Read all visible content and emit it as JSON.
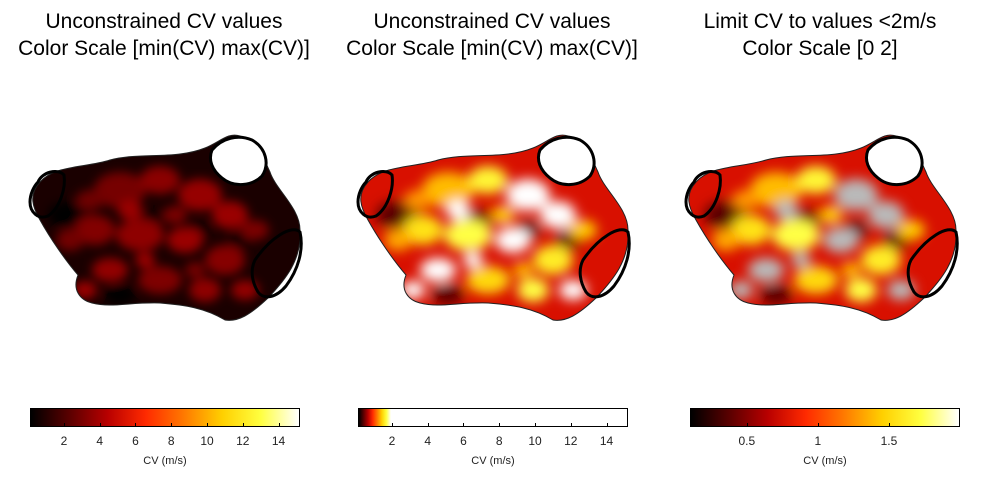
{
  "panels": [
    {
      "title_line1": "Unconstrained CV values",
      "title_line2": "Color Scale [min(CV) max(CV)]",
      "map_style": "dark",
      "colorbar": {
        "label": "CV (m/s)",
        "range": [
          0.1,
          15.2
        ],
        "ticks": [
          "2",
          "4",
          "6",
          "8",
          "10",
          "12",
          "14"
        ],
        "tick_values": [
          2,
          4,
          6,
          8,
          10,
          12,
          14
        ]
      }
    },
    {
      "title_line1": "Unconstrained CV values",
      "title_line2": "Color Scale [min(CV) max(CV)]",
      "map_style": "hot",
      "colorbar": {
        "label": "CV (m/s)",
        "range": [
          0.1,
          15.2
        ],
        "ticks": [
          "2",
          "4",
          "6",
          "8",
          "10",
          "12",
          "14"
        ],
        "tick_values": [
          2,
          4,
          6,
          8,
          10,
          12,
          14
        ]
      }
    },
    {
      "title_line1": "Limit CV to values <2m/s",
      "title_line2": "Color Scale [0 2]",
      "map_style": "hot-limited",
      "colorbar": {
        "label": "CV (m/s)",
        "range": [
          0.1,
          2.0
        ],
        "ticks": [
          "0.5",
          "1",
          "1.5"
        ],
        "tick_values": [
          0.5,
          1,
          1.5
        ]
      }
    }
  ],
  "colors": {
    "outline": "#000000",
    "exceed_gray": "#b9b9b9",
    "colormap": [
      "#000000",
      "#5a0000",
      "#b80000",
      "#ff2a00",
      "#ff7a00",
      "#ffd000",
      "#ffff40",
      "#ffffff"
    ]
  }
}
